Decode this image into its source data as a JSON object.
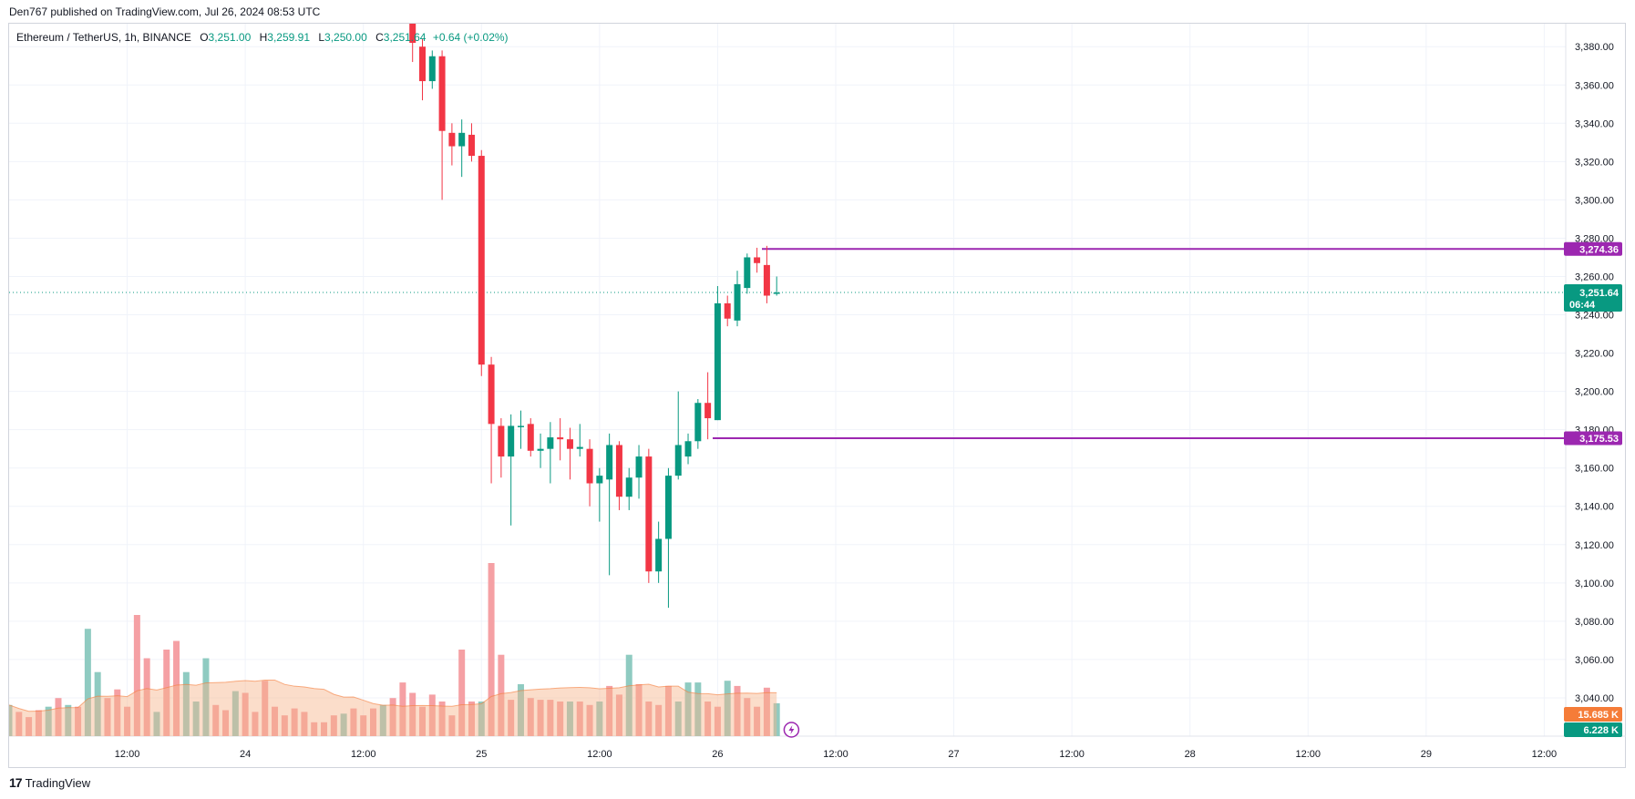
{
  "header": {
    "publisher": "Den767 published on TradingView.com, Jul 26, 2024 08:53 UTC"
  },
  "legend": {
    "symbol": "Ethereum / TetherUS, 1h, BINANCE",
    "o_label": "O",
    "o_value": "3,251.00",
    "h_label": "H",
    "h_value": "3,259.91",
    "l_label": "L",
    "l_value": "3,250.00",
    "c_label": "C",
    "c_value": "3,251.64",
    "change": "+0.64 (+0.02%)"
  },
  "footer": {
    "brand": "TradingView",
    "brand_mark": "17"
  },
  "colors": {
    "up": "#089981",
    "down": "#f23645",
    "vol_up": "#8fcbc1",
    "vol_down": "#f5a0a4",
    "vol_ma": "#f7b48a",
    "level": "#9c27b0",
    "last_price": "#089981",
    "vol_tag": "#f57c38",
    "alert_icon": "#9c27b0"
  },
  "icons": {
    "alert": "lightning-icon"
  },
  "tags": {
    "level_high": "3,274.36",
    "level_low": "3,175.53",
    "last_price": "3,251.64",
    "countdown": "06:44",
    "vol_ma": "15.685 K",
    "vol_last": "6.228 K"
  },
  "chart_data": {
    "type": "candlestick",
    "symbol": "Ethereum / TetherUS",
    "interval": "1h",
    "exchange": "BINANCE",
    "y_axis_ticks": [
      "3,040.00",
      "3,060.00",
      "3,080.00",
      "3,100.00",
      "3,120.00",
      "3,140.00",
      "3,160.00",
      "3,180.00",
      "3,200.00",
      "3,220.00",
      "3,240.00",
      "3,260.00",
      "3,280.00",
      "3,300.00",
      "3,320.00",
      "3,340.00",
      "3,360.00",
      "3,380.00"
    ],
    "y_axis_values": [
      3040,
      3060,
      3080,
      3100,
      3120,
      3140,
      3160,
      3180,
      3200,
      3220,
      3240,
      3260,
      3280,
      3300,
      3320,
      3340,
      3360,
      3380
    ],
    "ylim": [
      3020,
      3392
    ],
    "x_axis_ticks": [
      "12:00",
      "24",
      "12:00",
      "25",
      "12:00",
      "26",
      "12:00",
      "27",
      "12:00",
      "28",
      "12:00",
      "29",
      "12:00"
    ],
    "x_axis_hours": [
      12,
      24,
      36,
      48,
      60,
      72,
      84,
      96,
      108,
      120,
      132,
      144,
      156
    ],
    "x_range_hours": [
      0,
      158
    ],
    "time_origin": "Jul 23 00:00",
    "horizontal_levels": [
      {
        "price": 3274.36,
        "from_hour": 76.5
      },
      {
        "price": 3175.53,
        "from_hour": 71.5
      }
    ],
    "last_price": 3251.64,
    "candles": [
      {
        "t": 41,
        "o": 3392,
        "h": 3398,
        "l": 3372,
        "c": 3382
      },
      {
        "t": 42,
        "o": 3380,
        "h": 3384,
        "l": 3352,
        "c": 3362
      },
      {
        "t": 43,
        "o": 3362,
        "h": 3378,
        "l": 3358,
        "c": 3375
      },
      {
        "t": 44,
        "o": 3375,
        "h": 3378,
        "l": 3300,
        "c": 3336
      },
      {
        "t": 45,
        "o": 3335,
        "h": 3340,
        "l": 3318,
        "c": 3328
      },
      {
        "t": 46,
        "o": 3328,
        "h": 3342,
        "l": 3312,
        "c": 3335
      },
      {
        "t": 47,
        "o": 3334,
        "h": 3340,
        "l": 3320,
        "c": 3323
      },
      {
        "t": 48,
        "o": 3323,
        "h": 3326,
        "l": 3208,
        "c": 3214
      },
      {
        "t": 49,
        "o": 3214,
        "h": 3218,
        "l": 3152,
        "c": 3183
      },
      {
        "t": 50,
        "o": 3182,
        "h": 3186,
        "l": 3155,
        "c": 3166
      },
      {
        "t": 51,
        "o": 3166,
        "h": 3188,
        "l": 3130,
        "c": 3182
      },
      {
        "t": 52,
        "o": 3182,
        "h": 3190,
        "l": 3170,
        "c": 3182
      },
      {
        "t": 53,
        "o": 3183,
        "h": 3186,
        "l": 3166,
        "c": 3169
      },
      {
        "t": 54,
        "o": 3169,
        "h": 3178,
        "l": 3160,
        "c": 3170
      },
      {
        "t": 55,
        "o": 3170,
        "h": 3184,
        "l": 3152,
        "c": 3176
      },
      {
        "t": 56,
        "o": 3176,
        "h": 3186,
        "l": 3164,
        "c": 3175
      },
      {
        "t": 57,
        "o": 3175,
        "h": 3181,
        "l": 3154,
        "c": 3170
      },
      {
        "t": 58,
        "o": 3170,
        "h": 3183,
        "l": 3166,
        "c": 3171
      },
      {
        "t": 59,
        "o": 3170,
        "h": 3175,
        "l": 3140,
        "c": 3152
      },
      {
        "t": 60,
        "o": 3152,
        "h": 3160,
        "l": 3132,
        "c": 3156
      },
      {
        "t": 61,
        "o": 3154,
        "h": 3178,
        "l": 3104,
        "c": 3172
      },
      {
        "t": 62,
        "o": 3172,
        "h": 3174,
        "l": 3138,
        "c": 3145
      },
      {
        "t": 63,
        "o": 3145,
        "h": 3160,
        "l": 3138,
        "c": 3155
      },
      {
        "t": 64,
        "o": 3155,
        "h": 3172,
        "l": 3144,
        "c": 3166
      },
      {
        "t": 65,
        "o": 3166,
        "h": 3170,
        "l": 3100,
        "c": 3106
      },
      {
        "t": 66,
        "o": 3106,
        "h": 3132,
        "l": 3100,
        "c": 3123
      },
      {
        "t": 67,
        "o": 3123,
        "h": 3160,
        "l": 3087,
        "c": 3156
      },
      {
        "t": 68,
        "o": 3156,
        "h": 3200,
        "l": 3154,
        "c": 3172
      },
      {
        "t": 69,
        "o": 3166,
        "h": 3178,
        "l": 3162,
        "c": 3174
      },
      {
        "t": 70,
        "o": 3174,
        "h": 3196,
        "l": 3170,
        "c": 3194
      },
      {
        "t": 71,
        "o": 3194,
        "h": 3210,
        "l": 3175,
        "c": 3186
      },
      {
        "t": 72,
        "o": 3185,
        "h": 3255,
        "l": 3185,
        "c": 3246
      },
      {
        "t": 73,
        "o": 3246,
        "h": 3250,
        "l": 3234,
        "c": 3238
      },
      {
        "t": 74,
        "o": 3237,
        "h": 3263,
        "l": 3234,
        "c": 3256
      },
      {
        "t": 75,
        "o": 3254,
        "h": 3272,
        "l": 3251,
        "c": 3270
      },
      {
        "t": 76,
        "o": 3270,
        "h": 3275,
        "l": 3262,
        "c": 3267
      },
      {
        "t": 77,
        "o": 3266,
        "h": 3276,
        "l": 3246,
        "c": 3250
      },
      {
        "t": 78,
        "o": 3251,
        "h": 3260,
        "l": 3250,
        "c": 3251.64
      }
    ],
    "volume": {
      "max_shown": 1.0,
      "ma_last_k": 15.685,
      "last_k": 6.228,
      "bars": [
        {
          "t": 0,
          "v": 0.18,
          "up": true
        },
        {
          "t": 1,
          "v": 0.14,
          "up": false
        },
        {
          "t": 2,
          "v": 0.11,
          "up": false
        },
        {
          "t": 3,
          "v": 0.15,
          "up": false
        },
        {
          "t": 4,
          "v": 0.17,
          "up": true
        },
        {
          "t": 5,
          "v": 0.22,
          "up": false
        },
        {
          "t": 6,
          "v": 0.18,
          "up": true
        },
        {
          "t": 7,
          "v": 0.17,
          "up": false
        },
        {
          "t": 8,
          "v": 0.62,
          "up": true
        },
        {
          "t": 9,
          "v": 0.37,
          "up": true
        },
        {
          "t": 10,
          "v": 0.22,
          "up": false
        },
        {
          "t": 11,
          "v": 0.27,
          "up": false
        },
        {
          "t": 12,
          "v": 0.17,
          "up": false
        },
        {
          "t": 13,
          "v": 0.7,
          "up": false
        },
        {
          "t": 14,
          "v": 0.45,
          "up": false
        },
        {
          "t": 15,
          "v": 0.14,
          "up": true
        },
        {
          "t": 16,
          "v": 0.5,
          "up": false
        },
        {
          "t": 17,
          "v": 0.55,
          "up": false
        },
        {
          "t": 18,
          "v": 0.37,
          "up": true
        },
        {
          "t": 19,
          "v": 0.2,
          "up": true
        },
        {
          "t": 20,
          "v": 0.45,
          "up": true
        },
        {
          "t": 21,
          "v": 0.18,
          "up": false
        },
        {
          "t": 22,
          "v": 0.15,
          "up": false
        },
        {
          "t": 23,
          "v": 0.26,
          "up": true
        },
        {
          "t": 24,
          "v": 0.25,
          "up": false
        },
        {
          "t": 25,
          "v": 0.14,
          "up": false
        },
        {
          "t": 26,
          "v": 0.32,
          "up": false
        },
        {
          "t": 27,
          "v": 0.17,
          "up": false
        },
        {
          "t": 28,
          "v": 0.12,
          "up": false
        },
        {
          "t": 29,
          "v": 0.16,
          "up": false
        },
        {
          "t": 30,
          "v": 0.14,
          "up": false
        },
        {
          "t": 31,
          "v": 0.08,
          "up": false
        },
        {
          "t": 32,
          "v": 0.08,
          "up": false
        },
        {
          "t": 33,
          "v": 0.12,
          "up": false
        },
        {
          "t": 34,
          "v": 0.13,
          "up": true
        },
        {
          "t": 35,
          "v": 0.16,
          "up": false
        },
        {
          "t": 36,
          "v": 0.12,
          "up": false
        },
        {
          "t": 37,
          "v": 0.16,
          "up": false
        },
        {
          "t": 38,
          "v": 0.18,
          "up": true
        },
        {
          "t": 39,
          "v": 0.22,
          "up": false
        },
        {
          "t": 40,
          "v": 0.31,
          "up": false
        },
        {
          "t": 41,
          "v": 0.25,
          "up": false
        },
        {
          "t": 42,
          "v": 0.17,
          "up": false
        },
        {
          "t": 43,
          "v": 0.24,
          "up": false
        },
        {
          "t": 44,
          "v": 0.2,
          "up": false
        },
        {
          "t": 45,
          "v": 0.12,
          "up": false
        },
        {
          "t": 46,
          "v": 0.5,
          "up": false
        },
        {
          "t": 47,
          "v": 0.2,
          "up": false
        },
        {
          "t": 48,
          "v": 0.2,
          "up": true
        },
        {
          "t": 49,
          "v": 1.0,
          "up": false
        },
        {
          "t": 50,
          "v": 0.47,
          "up": false
        },
        {
          "t": 51,
          "v": 0.21,
          "up": false
        },
        {
          "t": 52,
          "v": 0.3,
          "up": true
        },
        {
          "t": 53,
          "v": 0.22,
          "up": false
        },
        {
          "t": 54,
          "v": 0.21,
          "up": false
        },
        {
          "t": 55,
          "v": 0.21,
          "up": false
        },
        {
          "t": 56,
          "v": 0.2,
          "up": false
        },
        {
          "t": 57,
          "v": 0.2,
          "up": true
        },
        {
          "t": 58,
          "v": 0.2,
          "up": false
        },
        {
          "t": 59,
          "v": 0.18,
          "up": false
        },
        {
          "t": 60,
          "v": 0.2,
          "up": true
        },
        {
          "t": 61,
          "v": 0.29,
          "up": false
        },
        {
          "t": 62,
          "v": 0.24,
          "up": false
        },
        {
          "t": 63,
          "v": 0.47,
          "up": true
        },
        {
          "t": 64,
          "v": 0.3,
          "up": false
        },
        {
          "t": 65,
          "v": 0.2,
          "up": false
        },
        {
          "t": 66,
          "v": 0.18,
          "up": false
        },
        {
          "t": 67,
          "v": 0.29,
          "up": false
        },
        {
          "t": 68,
          "v": 0.2,
          "up": true
        },
        {
          "t": 69,
          "v": 0.31,
          "up": true
        },
        {
          "t": 70,
          "v": 0.31,
          "up": true
        },
        {
          "t": 71,
          "v": 0.2,
          "up": false
        },
        {
          "t": 72,
          "v": 0.17,
          "up": false
        },
        {
          "t": 73,
          "v": 0.32,
          "up": true
        },
        {
          "t": 74,
          "v": 0.29,
          "up": false
        },
        {
          "t": 75,
          "v": 0.22,
          "up": false
        },
        {
          "t": 76,
          "v": 0.17,
          "up": false
        },
        {
          "t": 77,
          "v": 0.28,
          "up": false
        },
        {
          "t": 78,
          "v": 0.19,
          "up": true
        }
      ]
    }
  }
}
